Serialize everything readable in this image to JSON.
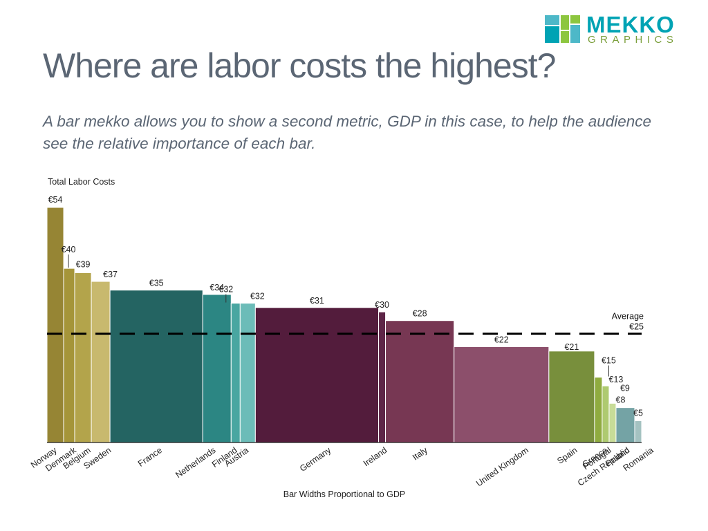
{
  "title": "Where are labor costs the highest?",
  "subtitle": "A bar mekko allows you to show a second metric, GDP in this case, to help the audience see the relative importance of each bar.",
  "logo": {
    "word": "MEKKO",
    "sub": "GRAPHICS",
    "colors": [
      "#4db8c8",
      "#8dc63f",
      "#00a3b4"
    ]
  },
  "chart_data": {
    "type": "bar",
    "chart_subtype": "bar mekko (variable-width bars)",
    "ylabel": "Total Labor Costs",
    "xlabel": "Bar Widths Proportional to GDP",
    "value_prefix": "€",
    "categories": [
      "Norway",
      "Denmark",
      "Belgium",
      "Sweden",
      "France",
      "Netherlands",
      "Finland",
      "Austria",
      "Germany",
      "Ireland",
      "Italy",
      "United Kingdom",
      "Spain",
      "Greece",
      "Portugal",
      "Czech Republic",
      "Poland",
      "Romania"
    ],
    "values": [
      54,
      40,
      39,
      37,
      35,
      34,
      32,
      32,
      31,
      30,
      28,
      22,
      21,
      15,
      13,
      9,
      8,
      5
    ],
    "value_labels": [
      "€54",
      "€40",
      "€39",
      "€37",
      "€35",
      "€34",
      "€32",
      "€32",
      "€31",
      "€30",
      "€28",
      "€22",
      "€21",
      "€15",
      "€13",
      "€9",
      "€8",
      "€5"
    ],
    "gdp_widths": [
      24,
      16,
      24,
      27,
      134,
      41,
      13,
      22,
      178,
      10,
      99,
      137,
      66,
      11,
      10,
      10,
      27,
      10
    ],
    "colors": [
      "#968534",
      "#a59539",
      "#b3a44b",
      "#c8b96e",
      "#246462",
      "#2c8683",
      "#49a6a1",
      "#6cbcb8",
      "#531c3c",
      "#5e2547",
      "#773753",
      "#8c4f6b",
      "#788f3c",
      "#8fab3f",
      "#aeca70",
      "#c8dc98",
      "#74a3a5",
      "#a4c2c1"
    ],
    "average": {
      "value": 25,
      "label": "Average",
      "value_label": "€25"
    },
    "ylim": [
      0,
      54
    ],
    "grid": false,
    "legend": "none"
  }
}
